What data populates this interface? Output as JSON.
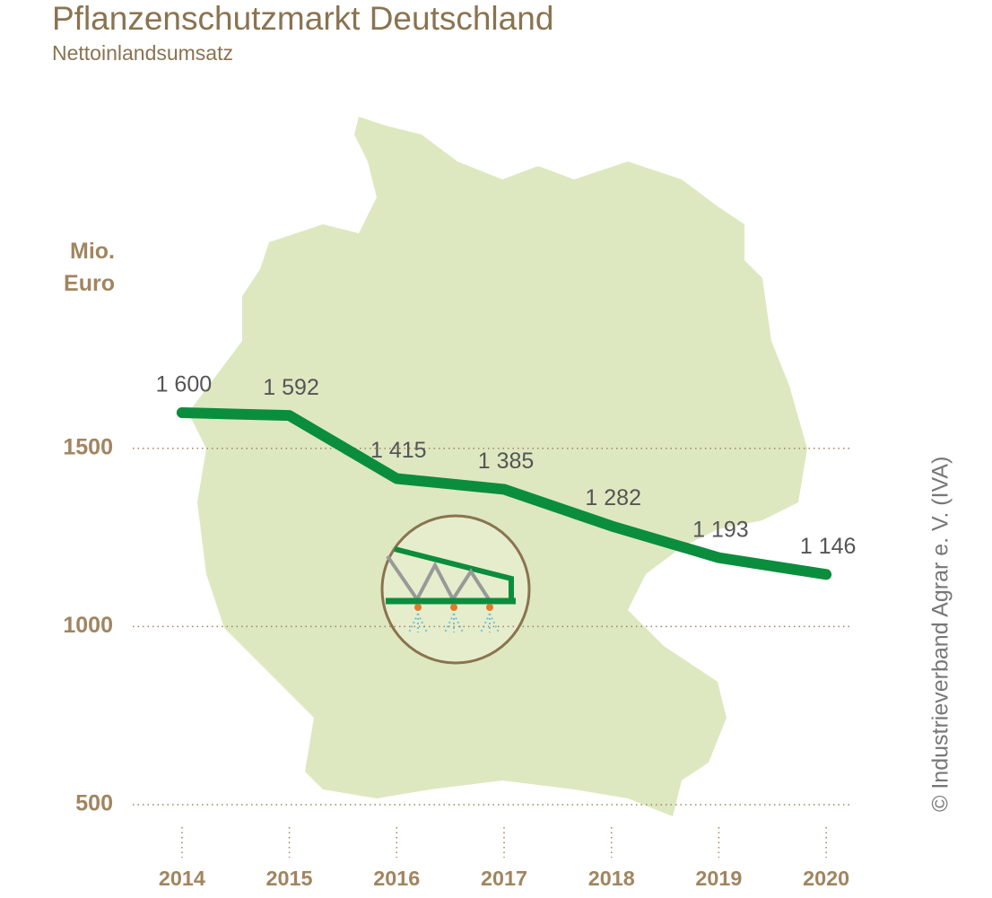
{
  "chart_data": {
    "type": "line",
    "title": "Pflanzenschutzmarkt Deutschland",
    "subtitle": "Nettoinlandsumsatz",
    "y_label": "Mio. Euro",
    "source": "© Industrieverband Agrar e. V. (IVA)",
    "categories": [
      "2014",
      "2015",
      "2016",
      "2017",
      "2018",
      "2019",
      "2020"
    ],
    "values": [
      1600,
      1592,
      1415,
      1385,
      1282,
      1193,
      1146
    ],
    "value_labels": [
      "1 600",
      "1 592",
      "1 415",
      "1 385",
      "1 282",
      "1 193",
      "1 146"
    ],
    "color": "#0b8d3e",
    "ylim": [
      500,
      1600
    ],
    "yticks": [
      500,
      1000,
      1500
    ],
    "grid": true
  }
}
